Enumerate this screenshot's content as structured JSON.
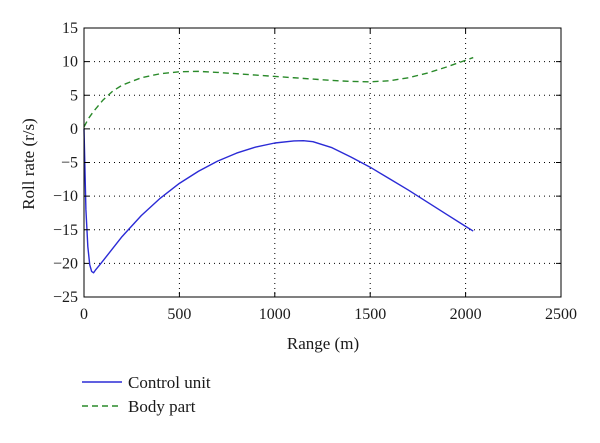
{
  "chart_data": {
    "type": "line",
    "xlabel": "Range (m)",
    "ylabel": "Roll rate (r/s)",
    "xlim": [
      0,
      2500
    ],
    "ylim": [
      -25,
      15
    ],
    "xticks": [
      0,
      500,
      1000,
      1500,
      2000,
      2500
    ],
    "yticks": [
      15,
      10,
      5,
      0,
      -5,
      -10,
      -15,
      -20,
      -25
    ],
    "xtick_labels": [
      "0",
      "500",
      "1000",
      "1500",
      "2000",
      "2500"
    ],
    "ytick_labels": [
      "15",
      "10",
      "5",
      "0",
      "−5",
      "−10",
      "−15",
      "−20",
      "−25"
    ],
    "grid": true,
    "legend_placement": "below",
    "series": [
      {
        "name": "Control unit",
        "color": "#2b2bd6",
        "dash": "solid",
        "x": [
          0,
          10,
          20,
          30,
          40,
          50,
          60,
          80,
          100,
          150,
          200,
          300,
          400,
          500,
          600,
          700,
          800,
          900,
          1000,
          1100,
          1150,
          1200,
          1300,
          1400,
          1500,
          1600,
          1700,
          1800,
          1900,
          2000,
          2040
        ],
        "y": [
          0,
          -12,
          -17.5,
          -20.2,
          -21.2,
          -21.4,
          -21.0,
          -20.3,
          -19.6,
          -17.8,
          -16.0,
          -12.9,
          -10.3,
          -8.1,
          -6.3,
          -4.8,
          -3.6,
          -2.7,
          -2.1,
          -1.8,
          -1.75,
          -1.9,
          -2.8,
          -4.2,
          -5.7,
          -7.4,
          -9.1,
          -10.9,
          -12.7,
          -14.5,
          -15.2
        ]
      },
      {
        "name": "Body part",
        "color": "#2a8a2a",
        "dash": "dashed",
        "x": [
          0,
          25,
          50,
          100,
          150,
          200,
          300,
          400,
          500,
          600,
          700,
          800,
          900,
          1000,
          1100,
          1200,
          1300,
          1400,
          1500,
          1600,
          1700,
          1800,
          1900,
          2000,
          2040
        ],
        "y": [
          0.3,
          1.6,
          2.6,
          4.3,
          5.6,
          6.5,
          7.6,
          8.2,
          8.5,
          8.55,
          8.4,
          8.2,
          8.0,
          7.8,
          7.6,
          7.4,
          7.2,
          7.05,
          7.0,
          7.15,
          7.6,
          8.3,
          9.2,
          10.2,
          10.6
        ]
      }
    ]
  }
}
